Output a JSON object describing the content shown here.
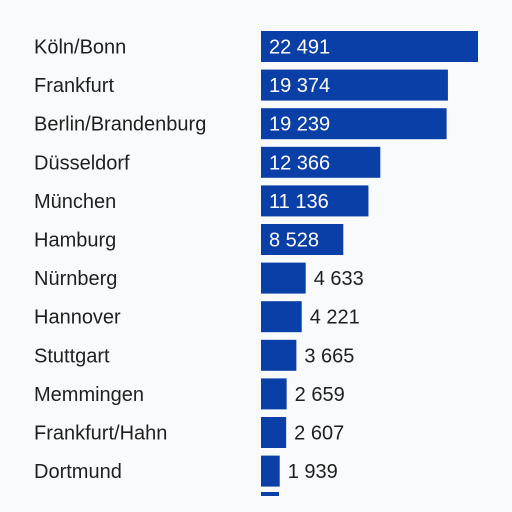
{
  "colors": {
    "bar": "#0b3fa8",
    "label_inside": "#ffffff",
    "label_outside": "#1f1f1f",
    "background": "#f9fafb"
  },
  "chart_data": {
    "type": "bar",
    "orientation": "horizontal",
    "title": "",
    "xlabel": "",
    "ylabel": "",
    "grid": false,
    "legend": "none",
    "categories": [
      "Köln/Bonn",
      "Frankfurt",
      "Berlin/Brandenburg",
      "Düsseldorf",
      "München",
      "Hamburg",
      "Nürnberg",
      "Hannover",
      "Stuttgart",
      "Memmingen",
      "Frankfurt/Hahn",
      "Dortmund"
    ],
    "values": [
      22491,
      19374,
      19239,
      12366,
      11136,
      8528,
      4633,
      4221,
      3665,
      2659,
      2607,
      1939
    ],
    "value_labels": [
      "22 491",
      "19 374",
      "19 239",
      "12 366",
      "11 136",
      "8 528",
      "4 633",
      "4 221",
      "3 665",
      "2 659",
      "2 607",
      "1 939"
    ],
    "xlim": [
      0,
      22491
    ]
  }
}
